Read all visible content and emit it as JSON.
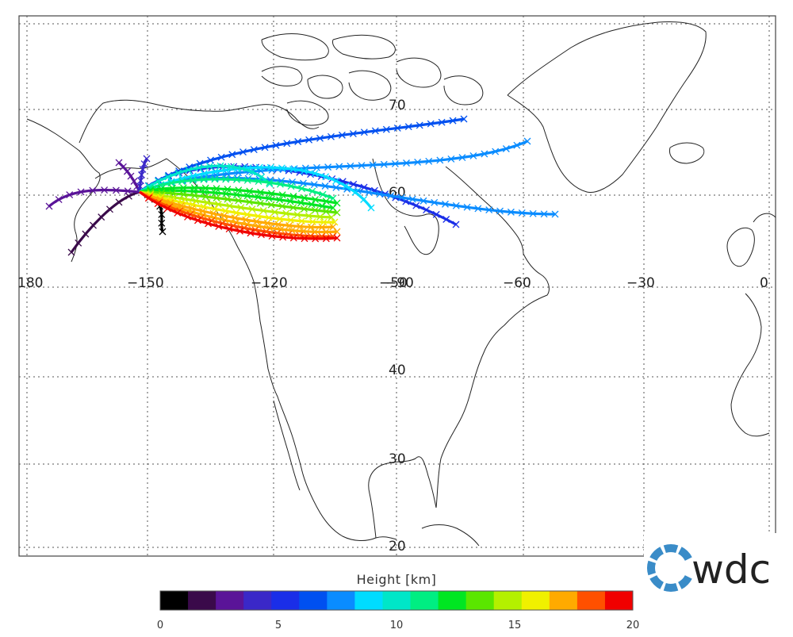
{
  "map": {
    "lon_labels": [
      "180",
      "−150",
      "−120",
      "−90",
      "−60",
      "−30",
      "0"
    ],
    "lat_labels": [
      "70",
      "60",
      "40",
      "30",
      "20"
    ],
    "extra_label": "−50"
  },
  "colorbar": {
    "title": "Height [km]",
    "ticks": [
      "0",
      "5",
      "10",
      "15",
      "20"
    ],
    "colors": [
      "#000000",
      "#3a0a4a",
      "#5a1498",
      "#3a28c8",
      "#1a2ee8",
      "#0050f0",
      "#0a8cff",
      "#00dcff",
      "#00e6c8",
      "#00ee82",
      "#00e622",
      "#5ae600",
      "#b4f000",
      "#f0f000",
      "#ffaa00",
      "#ff5000",
      "#f00000"
    ]
  },
  "trajectories": {
    "count": 21,
    "height_range_km": [
      0,
      20
    ],
    "marker": "x"
  },
  "logo": {
    "text": "wdc",
    "accent_color": "#3a8cc8"
  }
}
